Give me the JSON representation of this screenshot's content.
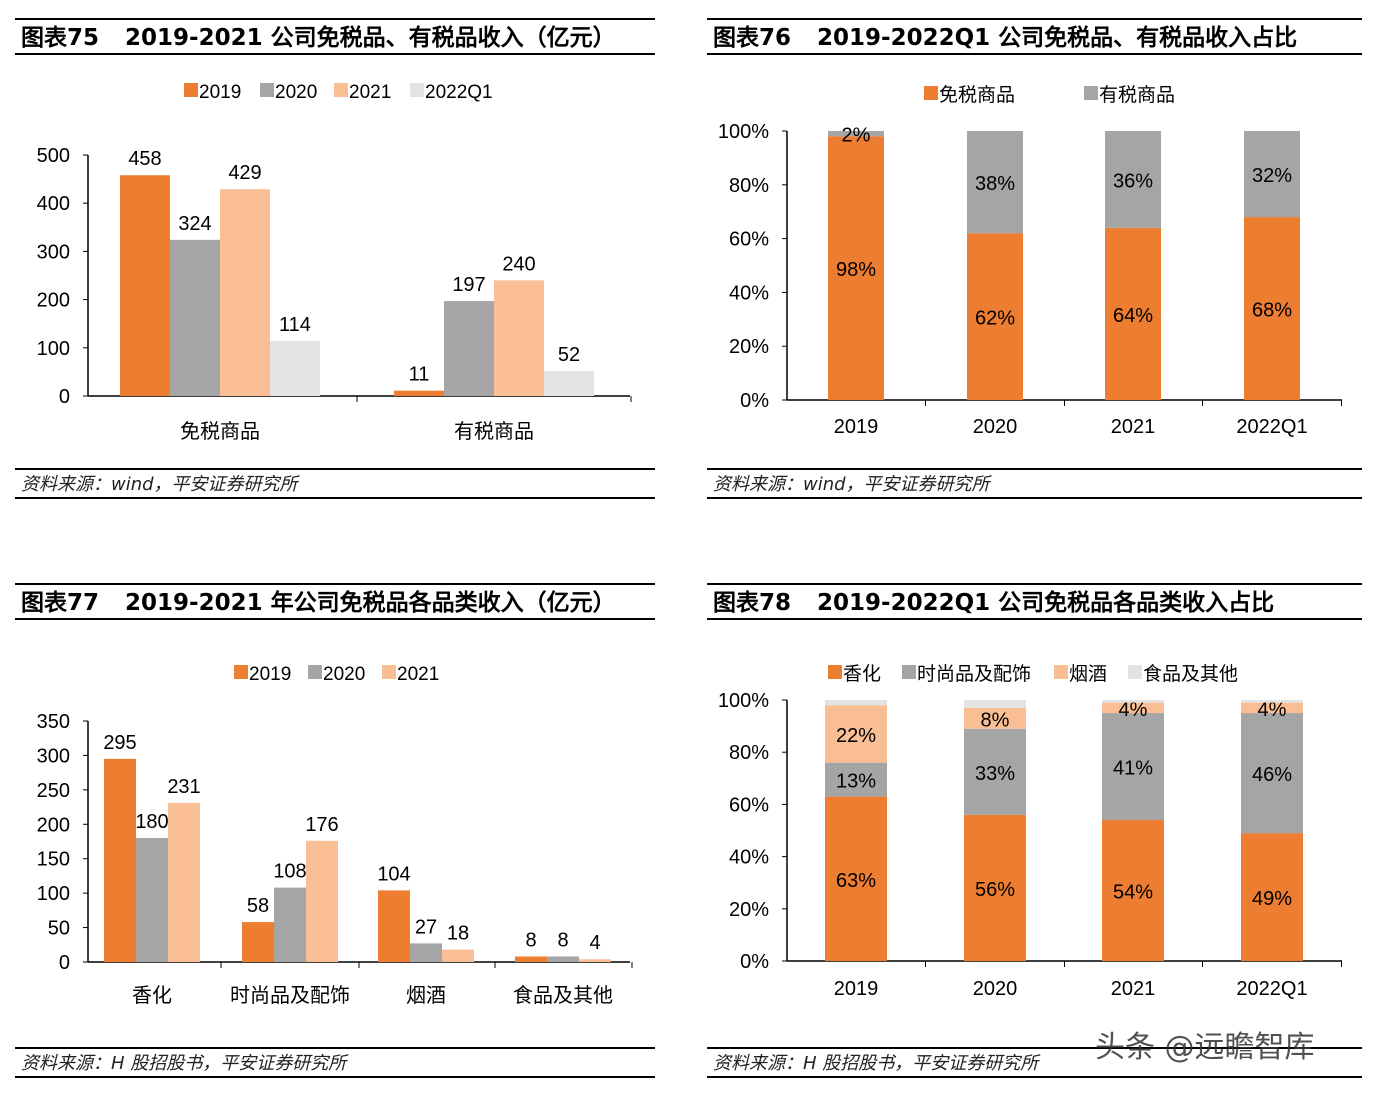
{
  "colors": {
    "orange": "#ED7D31",
    "grey": "#A5A5A5",
    "peach": "#F9BE93",
    "lightgrey": "#E3E3E3"
  },
  "watermark": "头条 @远瞻智库",
  "chart_data": [
    {
      "type": "bar",
      "figure_no": "图表75",
      "title": "2019-2021 公司免税品、有税品收入（亿元）",
      "source": "资料来源：wind，平安证券研究所",
      "categories": [
        "免税商品",
        "有税商品"
      ],
      "series": [
        {
          "name": "2019",
          "color": "#ED7D31",
          "values": [
            458,
            11
          ]
        },
        {
          "name": "2020",
          "color": "#A5A5A5",
          "values": [
            324,
            197
          ]
        },
        {
          "name": "2021",
          "color": "#F9BE93",
          "values": [
            429,
            240
          ]
        },
        {
          "name": "2022Q1",
          "color": "#E3E3E3",
          "values": [
            114,
            52
          ]
        }
      ],
      "ylim": [
        0,
        500
      ],
      "yticks": [
        "0",
        "100",
        "200",
        "300",
        "400",
        "500"
      ],
      "legend": "top"
    },
    {
      "type": "stacked_bar",
      "figure_no": "图表76",
      "title": "2019-2022Q1 公司免税品、有税品收入占比",
      "source": "资料来源：wind，平安证券研究所",
      "categories": [
        "2019",
        "2020",
        "2021",
        "2022Q1"
      ],
      "series": [
        {
          "name": "免税商品",
          "color": "#ED7D31",
          "values": [
            98,
            62,
            64,
            68
          ],
          "labels": [
            "98%",
            "62%",
            "64%",
            "68%"
          ]
        },
        {
          "name": "有税商品",
          "color": "#A5A5A5",
          "values": [
            2,
            38,
            36,
            32
          ],
          "labels": [
            "2%",
            "38%",
            "36%",
            "32%"
          ]
        }
      ],
      "ylim": [
        0,
        100
      ],
      "yticks": [
        "0%",
        "20%",
        "40%",
        "60%",
        "80%",
        "100%"
      ],
      "legend": "top"
    },
    {
      "type": "bar",
      "figure_no": "图表77",
      "title": "2019-2021 年公司免税品各品类收入（亿元）",
      "source": "资料来源：H 股招股书，平安证券研究所",
      "categories": [
        "香化",
        "时尚品及配饰",
        "烟酒",
        "食品及其他"
      ],
      "series": [
        {
          "name": "2019",
          "color": "#ED7D31",
          "values": [
            295,
            58,
            104,
            8
          ]
        },
        {
          "name": "2020",
          "color": "#A5A5A5",
          "values": [
            180,
            108,
            27,
            8
          ]
        },
        {
          "name": "2021",
          "color": "#F9BE93",
          "values": [
            231,
            176,
            18,
            4
          ]
        }
      ],
      "ylim": [
        0,
        350
      ],
      "yticks": [
        "0",
        "50",
        "100",
        "150",
        "200",
        "250",
        "300",
        "350"
      ],
      "legend": "top"
    },
    {
      "type": "stacked_bar",
      "figure_no": "图表78",
      "title": "2019-2022Q1 公司免税品各品类收入占比",
      "source": "资料来源：H 股招股书，平安证券研究所",
      "categories": [
        "2019",
        "2020",
        "2021",
        "2022Q1"
      ],
      "series": [
        {
          "name": "香化",
          "color": "#ED7D31",
          "values": [
            63,
            56,
            54,
            49
          ],
          "labels": [
            "63%",
            "56%",
            "54%",
            "49%"
          ]
        },
        {
          "name": "时尚品及配饰",
          "color": "#A5A5A5",
          "values": [
            13,
            33,
            41,
            46
          ],
          "labels": [
            "13%",
            "33%",
            "41%",
            "46%"
          ]
        },
        {
          "name": "烟酒",
          "color": "#F9BE93",
          "values": [
            22,
            8,
            4,
            4
          ],
          "labels": [
            "22%",
            "8%",
            "4%",
            "4%"
          ]
        },
        {
          "name": "食品及其他",
          "color": "#E3E3E3",
          "values": [
            2,
            3,
            1,
            1
          ],
          "labels": [
            "",
            "",
            "",
            ""
          ]
        }
      ],
      "ylim": [
        0,
        100
      ],
      "yticks": [
        "0%",
        "20%",
        "40%",
        "60%",
        "80%",
        "100%"
      ],
      "legend": "top"
    }
  ]
}
